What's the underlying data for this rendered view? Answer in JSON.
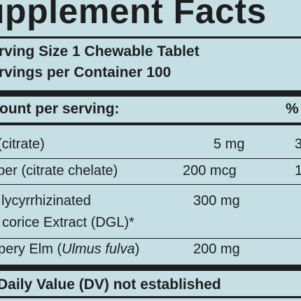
{
  "header": {
    "title": "upplement Facts",
    "serving_size": "rving Size 1 Chewable Tablet",
    "servings_per_container": "rvings per Container 100"
  },
  "table": {
    "header_label": "ount per serving:",
    "header_dv": "%",
    "rows": [
      {
        "name": "(citrate)",
        "amount": "5 mg",
        "dv": "3"
      },
      {
        "name": "per (citrate chelate)",
        "amount": "200 mcg",
        "dv": "1"
      },
      {
        "name_line1": "lycyrrhizinated",
        "name_line2": "corice Extract (DGL)*",
        "amount": "300 mg"
      },
      {
        "name_prefix": "pery Elm (",
        "name_italic": "Ulmus fulva",
        "name_suffix": ")",
        "amount": "200 mg"
      }
    ]
  },
  "footnote": "Daily Value (DV) not established",
  "colors": {
    "background": "#c5dfe4",
    "text": "#1e1e1e"
  }
}
